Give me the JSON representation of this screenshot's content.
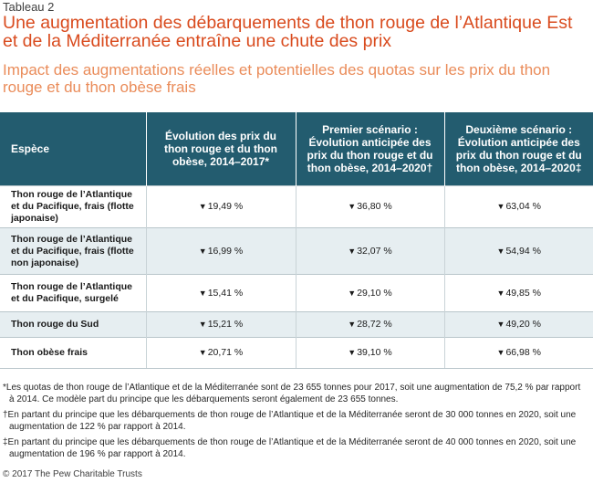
{
  "header": {
    "label": "Tableau 2",
    "title": "Une augmentation des débarquements de thon rouge de l’Atlantique Est et de la Méditerranée entraîne une chute des prix",
    "subtitle": "Impact des augmentations réelles et potentielles des quotas sur les prix du thon rouge et du thon obèse frais"
  },
  "colors": {
    "title": "#d94b1e",
    "subtitle": "#ea8c5a",
    "header_bg": "#235c6f",
    "stripe": "#e6eef1"
  },
  "table": {
    "columns": [
      "Espèce",
      "Évolution des prix du thon rouge et du thon obèse, 2014–2017*",
      "Premier scénario : Évolution anticipée des prix du thon rouge et du thon obèse, 2014–2020†",
      "Deuxième scénario : Évolution anticipée des prix du thon rouge et du thon obèse, 2014–2020‡"
    ],
    "arrow_icon": "▼",
    "rows": [
      {
        "species": "Thon rouge de l’Atlantique et du Pacifique, frais (flotte japonaise)",
        "v1": "19,49 %",
        "v2": "36,80 %",
        "v3": "63,04 %"
      },
      {
        "species": "Thon rouge de l’Atlantique et du Pacifique, frais (flotte non japonaise)",
        "v1": "16,99 %",
        "v2": "32,07 %",
        "v3": "54,94 %"
      },
      {
        "species": "Thon rouge de l’Atlantique et du Pacifique, surgelé",
        "v1": "15,41 %",
        "v2": "29,10 %",
        "v3": "49,85 %"
      },
      {
        "species": "Thon rouge du Sud",
        "v1": "15,21 %",
        "v2": "28,72 %",
        "v3": "49,20 %"
      },
      {
        "species": "Thon obèse frais",
        "v1": "20,71 %",
        "v2": "39,10 %",
        "v3": "66,98 %"
      }
    ]
  },
  "notes": [
    "*Les quotas de thon rouge de l’Atlantique et de la Méditerranée sont de 23 655 tonnes pour 2017, soit une augmentation de 75,2 % par rapport à 2014. Ce modèle part du principe que les débarquements seront également de 23 655 tonnes.",
    "†En partant du principe que les débarquements de thon rouge de l’Atlantique et de la Méditerranée seront de 30 000 tonnes en 2020, soit une augmentation de 122 % par rapport à 2014.",
    "‡En partant du principe que les débarquements de thon rouge de l’Atlantique et de la Méditerranée seront de 40 000 tonnes en 2020, soit une augmentation de 196 % par rapport à 2014."
  ],
  "copyright": "© 2017 The Pew Charitable Trusts"
}
